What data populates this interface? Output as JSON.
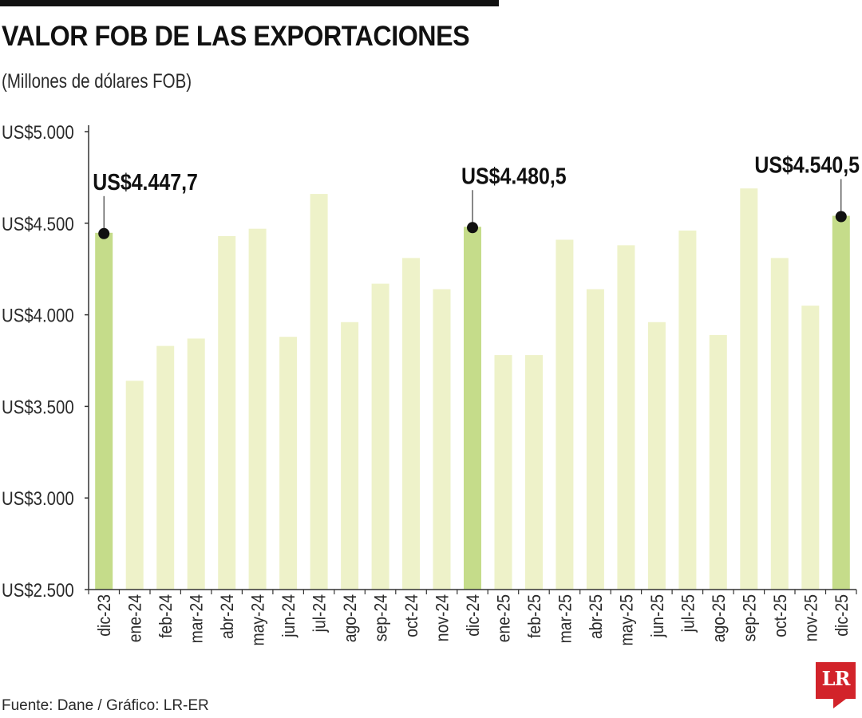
{
  "header": {
    "title": "VALOR FOB DE LAS EXPORTACIONES",
    "subtitle": "(Millones de dólares FOB)"
  },
  "footer": {
    "source": "Fuente: Dane / Gráfico: LR-ER",
    "logo_text": "LR"
  },
  "colors": {
    "bar_regular": "#eef2c9",
    "bar_highlight": "#c5dc8a",
    "axis": "#333333",
    "marker": "#111111",
    "logo_red": "#d2232a"
  },
  "chart_data": {
    "type": "bar",
    "title": "VALOR FOB DE LAS EXPORTACIONES",
    "subtitle": "(Millones de dólares FOB)",
    "xlabel": "",
    "ylabel": "",
    "ylim": [
      2500,
      5000
    ],
    "ytick_values": [
      2500,
      3000,
      3500,
      4000,
      4500,
      5000
    ],
    "ytick_labels": [
      "US$2.500",
      "US$3.000",
      "US$3.500",
      "US$4.000",
      "US$4.500",
      "US$5.000"
    ],
    "categories": [
      "dic-23",
      "ene-24",
      "feb-24",
      "mar-24",
      "abr-24",
      "may-24",
      "jun-24",
      "jul-24",
      "ago-24",
      "sep-24",
      "oct-24",
      "nov-24",
      "dic-24",
      "ene-25",
      "feb-25",
      "mar-25",
      "abr-25",
      "may-25",
      "jun-25",
      "jul-25",
      "ago-25",
      "sep-25",
      "oct-25",
      "nov-25",
      "dic-25"
    ],
    "values": [
      4447.7,
      3640,
      3830,
      3870,
      4430,
      4470,
      3880,
      4660,
      3960,
      4170,
      4310,
      4140,
      4480.5,
      3780,
      3780,
      4410,
      4140,
      4380,
      3960,
      4460,
      3890,
      4690,
      4310,
      4050,
      4540.5
    ],
    "highlighted": [
      0,
      12,
      24
    ],
    "annotations": [
      {
        "index": 0,
        "label": "US$4.447,7"
      },
      {
        "index": 12,
        "label": "US$4.480,5"
      },
      {
        "index": 24,
        "label": "US$4.540,5"
      }
    ],
    "grid": false,
    "legend": "none"
  }
}
